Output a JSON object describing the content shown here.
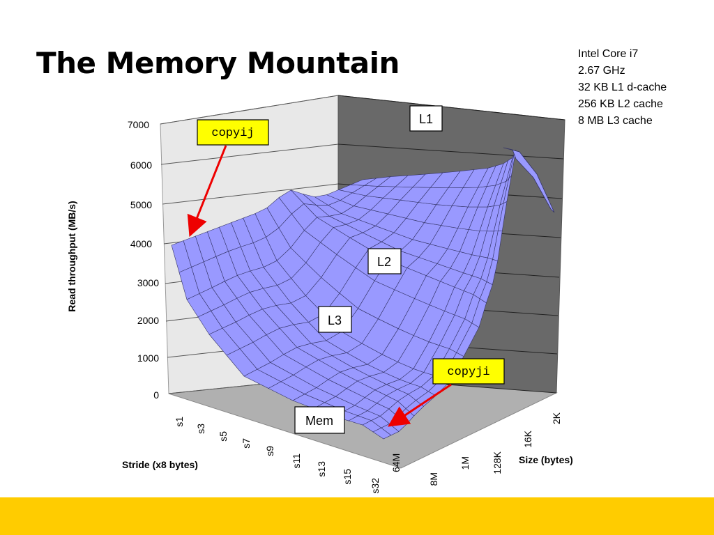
{
  "slide": {
    "title": "The Memory Mountain",
    "specs": [
      "Intel Core i7",
      "2.67 GHz",
      "32 KB L1 d-cache",
      "256 KB L2 cache",
      "8 MB L3 cache"
    ],
    "accent_bar_color": "#ffcc00"
  },
  "chart_data": {
    "type": "surface",
    "title": "",
    "zlabel": "Read  throughput (MB/s)",
    "xlabel": "Stride (x8 bytes)",
    "ylabel": "Size (bytes)",
    "zlim": [
      0,
      7000
    ],
    "z_ticks": [
      "0",
      "1000",
      "2000",
      "3000",
      "4000",
      "5000",
      "6000",
      "7000"
    ],
    "stride_ticks": [
      "s1",
      "s3",
      "s5",
      "s7",
      "s9",
      "s11",
      "s13",
      "s15",
      "s32"
    ],
    "size_ticks": [
      "64M",
      "8M",
      "1M",
      "128K",
      "16K",
      "2K"
    ],
    "surface_color": "#9999ff",
    "annotations": [
      {
        "text": "copyij",
        "style": "code",
        "background": "#ffff00"
      },
      {
        "text": "copyji",
        "style": "code",
        "background": "#ffff00"
      },
      {
        "text": "L1",
        "style": "box"
      },
      {
        "text": "L2",
        "style": "box"
      },
      {
        "text": "L3",
        "style": "box"
      },
      {
        "text": "Mem",
        "style": "box"
      }
    ],
    "approx_values": {
      "description_units": "MB/s",
      "s1_2K": 4000,
      "s1_64M": 4000,
      "s32_2K": 6600,
      "s32_64M": 200
    }
  }
}
